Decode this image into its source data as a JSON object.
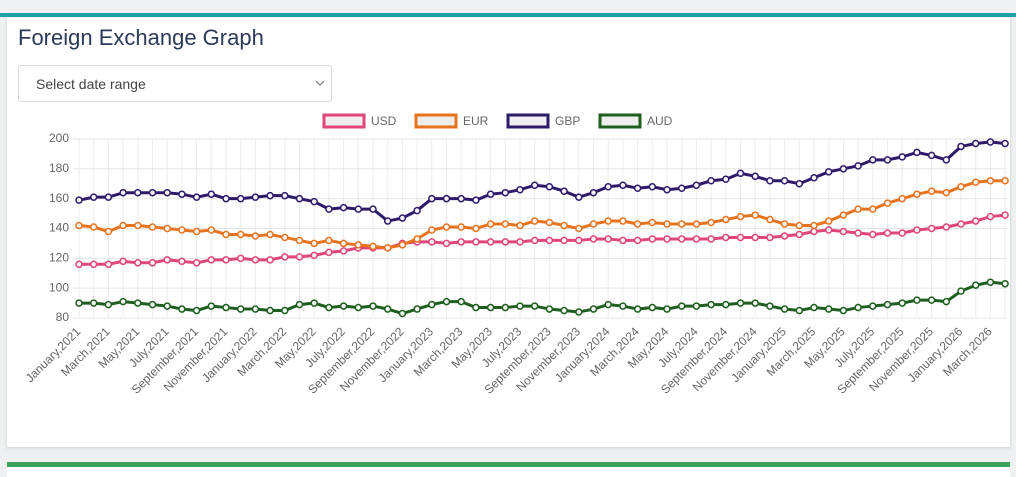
{
  "header": {
    "title": "Foreign Exchange Graph"
  },
  "select": {
    "placeholder": "Select date range"
  },
  "chart_data": {
    "type": "line",
    "categories": [
      "January,2021",
      null,
      "March,2021",
      null,
      "May,2021",
      null,
      "July,2021",
      null,
      "September,2021",
      null,
      "November,2021",
      null,
      "January,2022",
      null,
      "March,2022",
      null,
      "May,2022",
      null,
      "July,2022",
      null,
      "September,2022",
      null,
      "November,2022",
      null,
      "January,2023",
      null,
      "March,2023",
      null,
      "May,2023",
      null,
      "July,2023",
      null,
      "September,2023",
      null,
      "November,2023",
      null,
      "January,2024",
      null,
      "March,2024",
      null,
      "May,2024",
      null,
      "July,2024",
      null,
      "September,2024",
      null,
      "November,2024",
      null,
      "January,2025",
      null,
      "March,2025",
      null,
      "May,2025",
      null,
      "July,2025",
      null,
      "September,2025",
      null,
      "November,2025",
      null,
      "January,2026",
      null,
      "March,2026",
      null
    ],
    "series": [
      {
        "name": "USD",
        "color": "#e0457b",
        "values": [
          116,
          116,
          116,
          118,
          117,
          117,
          119,
          118,
          117,
          119,
          119,
          120,
          119,
          119,
          121,
          121,
          122,
          124,
          125,
          127,
          127,
          127,
          130,
          131,
          131,
          130,
          131,
          131,
          131,
          131,
          131,
          132,
          132,
          132,
          132,
          133,
          133,
          132,
          132,
          133,
          133,
          133,
          133,
          133,
          134,
          134,
          134,
          134,
          135,
          136,
          138,
          139,
          138,
          137,
          136,
          137,
          137,
          139,
          140,
          141,
          143,
          145,
          148,
          149
        ]
      },
      {
        "name": "EUR",
        "color": "#e8731e",
        "values": [
          142,
          141,
          138,
          142,
          142,
          141,
          140,
          139,
          138,
          139,
          136,
          136,
          135,
          136,
          134,
          132,
          130,
          132,
          130,
          129,
          128,
          127,
          129,
          133,
          139,
          141,
          141,
          140,
          143,
          143,
          142,
          145,
          144,
          142,
          140,
          143,
          145,
          145,
          143,
          144,
          143,
          143,
          143,
          144,
          146,
          148,
          149,
          146,
          143,
          142,
          142,
          145,
          149,
          153,
          153,
          157,
          160,
          163,
          165,
          164,
          168,
          171,
          172,
          172
        ]
      },
      {
        "name": "GBP",
        "color": "#2e1a6b",
        "values": [
          159,
          161,
          161,
          164,
          164,
          164,
          164,
          163,
          161,
          163,
          160,
          160,
          161,
          162,
          162,
          160,
          158,
          153,
          154,
          153,
          153,
          145,
          147,
          152,
          160,
          160,
          160,
          159,
          163,
          164,
          166,
          169,
          168,
          165,
          161,
          164,
          168,
          169,
          167,
          168,
          166,
          167,
          169,
          172,
          173,
          177,
          175,
          172,
          172,
          170,
          174,
          178,
          180,
          182,
          186,
          186,
          188,
          191,
          189,
          186,
          195,
          197,
          198,
          197
        ]
      },
      {
        "name": "AUD",
        "color": "#1e5e1e",
        "values": [
          90,
          90,
          89,
          91,
          90,
          89,
          88,
          86,
          85,
          88,
          87,
          86,
          86,
          85,
          85,
          89,
          90,
          87,
          88,
          87,
          88,
          86,
          83,
          86,
          89,
          91,
          91,
          87,
          87,
          87,
          88,
          88,
          86,
          85,
          84,
          86,
          89,
          88,
          86,
          87,
          86,
          88,
          88,
          89,
          89,
          90,
          90,
          88,
          86,
          85,
          87,
          86,
          85,
          87,
          88,
          89,
          90,
          92,
          92,
          91,
          98,
          102,
          104,
          103
        ]
      }
    ],
    "ylim": [
      80,
      200
    ],
    "yticks": [
      80,
      100,
      120,
      140,
      160,
      180,
      200
    ],
    "grid": true,
    "legend": "top"
  }
}
